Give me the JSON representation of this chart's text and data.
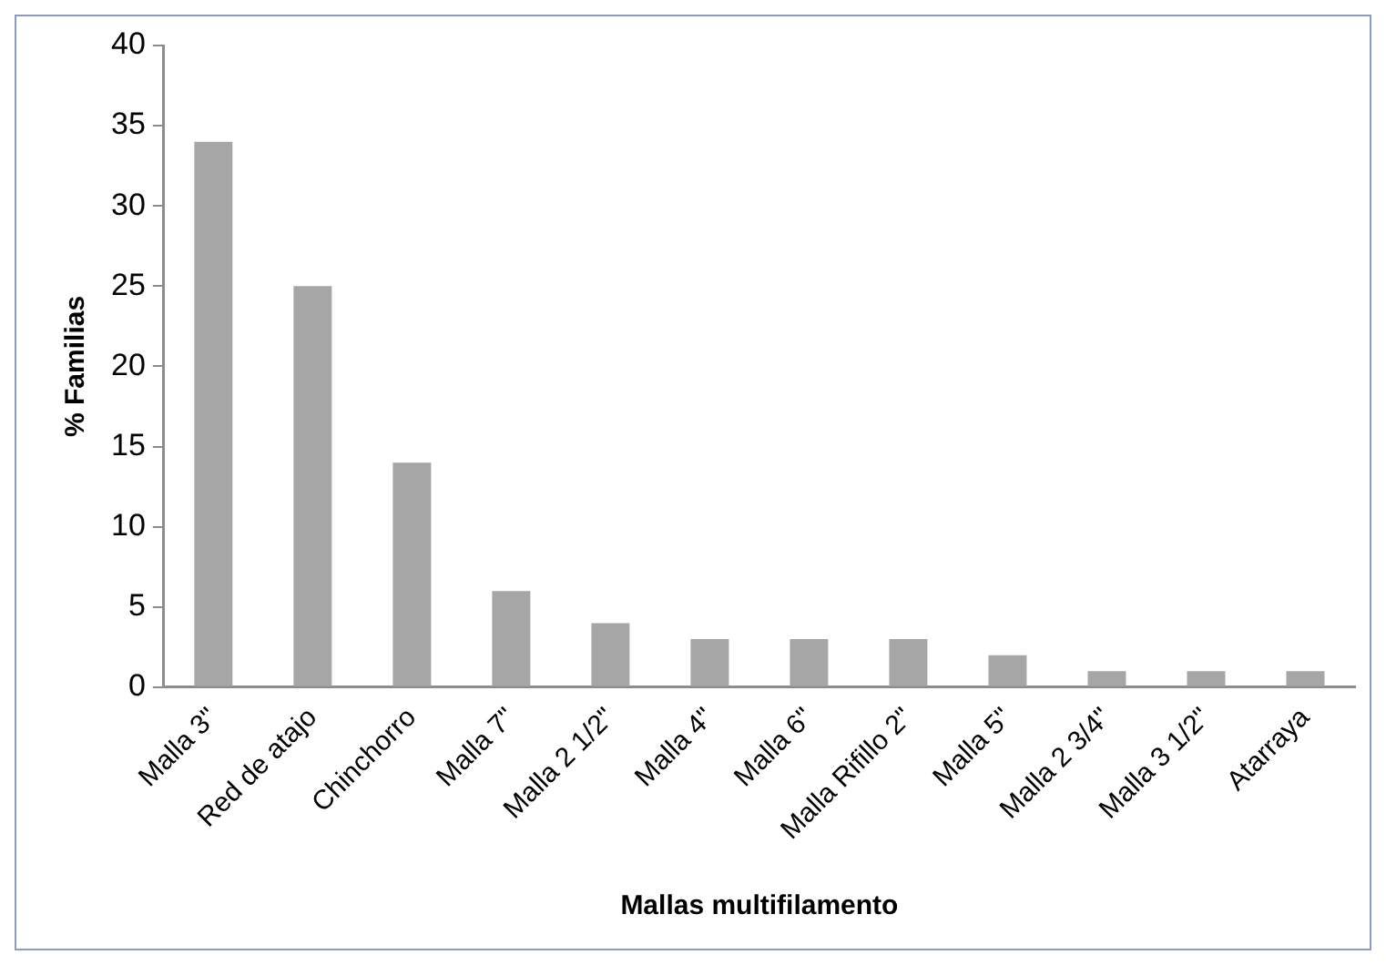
{
  "chart_data": {
    "type": "bar",
    "xlabel": "Mallas multifilamento",
    "ylabel": "% Familias",
    "categories": [
      "Malla 3\"",
      "Red de atajo",
      "Chinchorro",
      "Malla 7\"",
      "Malla 2 1/2\"",
      "Malla 4\"",
      "Malla 6\"",
      "Malla Rifillo 2\"",
      "Malla 5\"",
      "Malla 2 3/4\"",
      "Malla 3 1/2\"",
      "Atarraya"
    ],
    "values": [
      34,
      25,
      14,
      6,
      4,
      3,
      3,
      3,
      2,
      1,
      1,
      1
    ],
    "color": "#a6a6a6",
    "ylim": [
      0,
      40
    ],
    "yticks": [
      0,
      5,
      10,
      15,
      20,
      25,
      30,
      35,
      40
    ],
    "grid": false,
    "legend": false
  }
}
